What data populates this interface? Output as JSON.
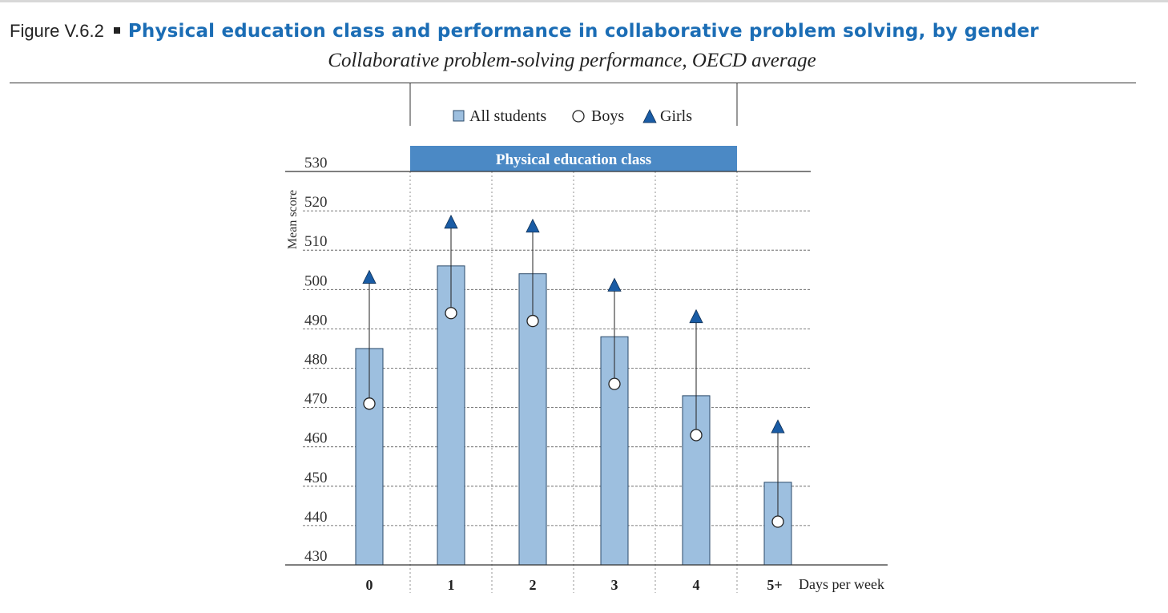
{
  "figure": {
    "label": "Figure V.6.2",
    "title": "Physical education class and performance in collaborative problem solving, by gender",
    "subtitle": "Collaborative problem-solving performance, OECD average"
  },
  "chart_data": {
    "type": "bar",
    "title": "Physical education class and performance in collaborative problem solving, by gender",
    "subtitle": "Collaborative problem-solving performance, OECD average",
    "ylabel": "Mean score",
    "xlabel": "Days per week",
    "ylim": [
      430,
      530
    ],
    "yticks": [
      "530",
      "520",
      "510",
      "500",
      "490",
      "480",
      "470",
      "460",
      "450",
      "440",
      "430"
    ],
    "categories": [
      "0",
      "1",
      "2",
      "3",
      "4",
      "5+"
    ],
    "group_label": "Physical education class",
    "legend": {
      "all": "All students",
      "boys": "Boys",
      "girls": "Girls"
    },
    "series": [
      {
        "name": "All students",
        "mark": "bar",
        "values": [
          485,
          506,
          504,
          488,
          473,
          451
        ]
      },
      {
        "name": "Boys",
        "mark": "circle",
        "values": [
          471,
          494,
          492,
          476,
          463,
          441
        ]
      },
      {
        "name": "Girls",
        "mark": "triangle",
        "values": [
          503,
          517,
          516,
          501,
          493,
          465
        ]
      }
    ],
    "colors": {
      "bar": "#9dbfdf",
      "bar_stroke": "#2a4a6a",
      "girls": "#1a5ca5",
      "band": "#4b89c5",
      "grid": "#555555"
    }
  }
}
